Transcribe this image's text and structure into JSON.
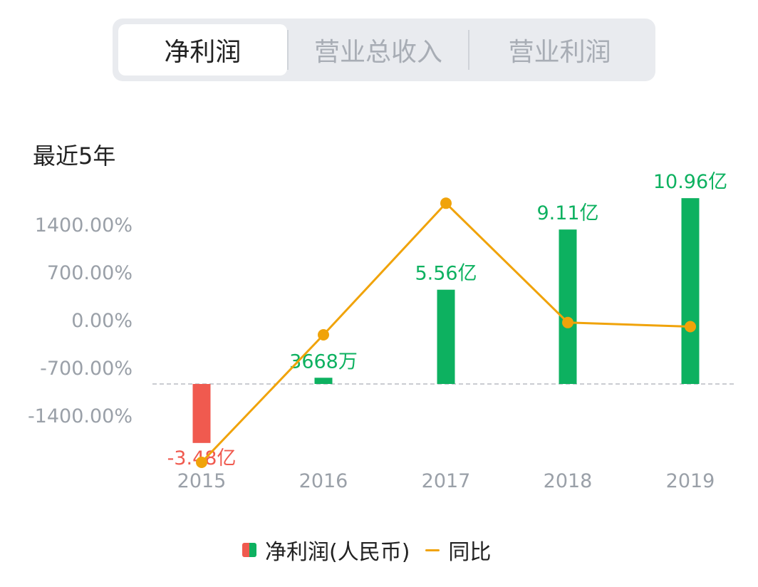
{
  "tabs": [
    {
      "label": "净利润",
      "active": true
    },
    {
      "label": "营业总收入",
      "active": false
    },
    {
      "label": "营业利润",
      "active": false
    }
  ],
  "period_label": "最近5年",
  "legend": {
    "bar_label": "净利润(人民币)",
    "line_label": "同比"
  },
  "colors": {
    "positive": "#0db160",
    "negative": "#f05a4f",
    "line": "#f0a30a",
    "axis_text": "#9aa0a8",
    "baseline": "#b8bcc2"
  },
  "chart_data": {
    "type": "bar",
    "categories": [
      "2015",
      "2016",
      "2017",
      "2018",
      "2019"
    ],
    "series": [
      {
        "name": "净利润(人民币)",
        "type": "bar",
        "values": [
          -3.48,
          0.3668,
          5.56,
          9.11,
          10.96
        ],
        "labels": [
          "-3.48亿",
          "3668万",
          "5.56亿",
          "9.11亿",
          "10.96亿"
        ]
      },
      {
        "name": "同比",
        "type": "line",
        "values": [
          -2100,
          -230,
          1700,
          -50,
          -110
        ]
      }
    ],
    "y_left_ticks": [
      "1400.00%",
      "700.00%",
      "0.00%",
      "-700.00%",
      "-1400.00%"
    ],
    "y_left_range": [
      -1400,
      1400
    ],
    "grid": false,
    "legend_position": "bottom"
  }
}
